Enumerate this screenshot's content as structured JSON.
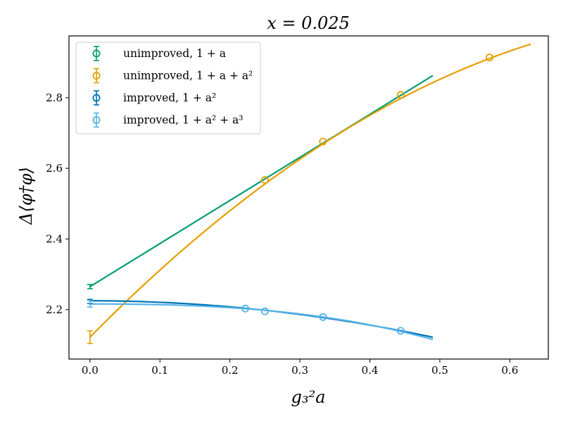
{
  "chart_data": {
    "type": "scatter",
    "title": "x = 0.025",
    "xlabel": "g₃²a",
    "ylabel": "Δ⟨φ†φ⟩",
    "xlim": [
      -0.03,
      0.655
    ],
    "ylim": [
      2.06,
      2.975
    ],
    "xticks": [
      0.0,
      0.1,
      0.2,
      0.3,
      0.4,
      0.5,
      0.6
    ],
    "xtick_labels": [
      "0.0",
      "0.1",
      "0.2",
      "0.3",
      "0.4",
      "0.5",
      "0.6"
    ],
    "yticks": [
      2.2,
      2.4,
      2.6,
      2.8
    ],
    "ytick_labels": [
      "2.2",
      "2.4",
      "2.6",
      "2.8"
    ],
    "legend_position": "top-left",
    "series": [
      {
        "name": "unimproved, 1 + a",
        "color": "#009e73",
        "points": [],
        "extrapolated": {
          "x": 0.0,
          "y": 2.265,
          "err": 0.006
        },
        "fit": {
          "x_start": 0.0,
          "x_end": 0.49,
          "coeffs": [
            2.265,
            1.22
          ]
        }
      },
      {
        "name": "unimproved, 1 + a + a²",
        "color": "#e69f00",
        "points": [
          {
            "x": 0.25,
            "y": 2.567
          },
          {
            "x": 0.333,
            "y": 2.676
          },
          {
            "x": 0.444,
            "y": 2.808
          },
          {
            "x": 0.571,
            "y": 2.914
          }
        ],
        "extrapolated": {
          "x": 0.0,
          "y": 2.122,
          "err": 0.018
        },
        "fit": {
          "x_start": 0.0,
          "x_end": 0.63,
          "coeffs": [
            2.122,
            2.01,
            -1.1
          ]
        }
      },
      {
        "name": "improved, 1 + a²",
        "color": "#0072b2",
        "points": [],
        "extrapolated": {
          "x": 0.0,
          "y": 2.223,
          "err": 0.006
        },
        "fit": {
          "x_start": 0.0,
          "x_end": 0.49,
          "coeffs": [
            2.225,
            0.0,
            -0.43
          ]
        }
      },
      {
        "name": "improved, 1 + a² + a³",
        "color": "#56b4e9",
        "points": [
          {
            "x": 0.222,
            "y": 2.203
          },
          {
            "x": 0.25,
            "y": 2.195
          },
          {
            "x": 0.333,
            "y": 2.179
          },
          {
            "x": 0.444,
            "y": 2.14
          }
        ],
        "extrapolated": {
          "x": 0.0,
          "y": 2.216,
          "err": 0.009
        },
        "fit": {
          "x_start": 0.0,
          "x_end": 0.49,
          "coeffs": [
            2.216,
            0.0,
            -0.15,
            -0.55
          ]
        }
      }
    ]
  }
}
